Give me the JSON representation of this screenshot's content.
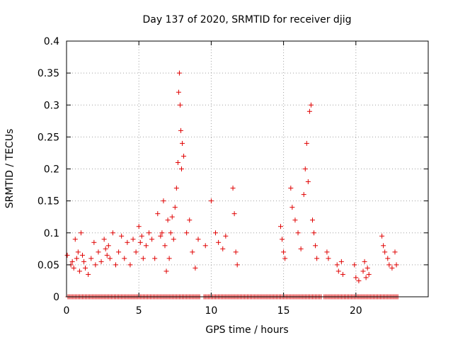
{
  "chart_data": {
    "type": "scatter",
    "title": "Day 137 of 2020, SRMTID for receiver djig",
    "xlabel": "GPS time / hours",
    "ylabel": "SRMTID / TECUs",
    "xlim": [
      0,
      25
    ],
    "ylim": [
      0,
      0.4
    ],
    "xticks": [
      0,
      5,
      10,
      15,
      20
    ],
    "xtick_labels": [
      "0",
      "5",
      "10",
      "15",
      "20"
    ],
    "yticks": [
      0,
      0.05,
      0.1,
      0.15,
      0.2,
      0.25,
      0.3,
      0.35,
      0.4
    ],
    "ytick_labels": [
      "0",
      "0.05",
      "0.1",
      "0.15",
      "0.2",
      "0.25",
      "0.3",
      "0.35",
      "0.4"
    ],
    "grid": true,
    "marker": "+",
    "color": "#e00000",
    "series": [
      {
        "name": "SRMTID",
        "x": [
          0.05,
          0.3,
          0.4,
          0.5,
          0.6,
          0.7,
          0.8,
          0.9,
          1.0,
          1.1,
          1.2,
          1.3,
          1.5,
          1.7,
          1.9,
          2.0,
          2.2,
          2.4,
          2.6,
          2.7,
          2.8,
          2.9,
          3.0,
          3.2,
          3.4,
          3.6,
          3.8,
          4.0,
          4.2,
          4.4,
          4.6,
          4.8,
          5.0,
          5.1,
          5.2,
          5.3,
          5.5,
          5.7,
          5.9,
          6.1,
          6.3,
          6.5,
          6.6,
          6.7,
          6.8,
          6.9,
          7.0,
          7.1,
          7.2,
          7.3,
          7.4,
          7.5,
          7.6,
          7.7,
          7.75,
          7.8,
          7.85,
          7.9,
          7.95,
          8.0,
          8.1,
          8.3,
          8.5,
          8.7,
          8.9,
          9.1,
          9.6,
          10.0,
          10.3,
          10.5,
          10.8,
          11.0,
          11.5,
          11.6,
          11.7,
          11.8,
          14.8,
          14.9,
          15.0,
          15.1,
          15.5,
          15.6,
          15.8,
          16.0,
          16.2,
          16.4,
          16.5,
          16.6,
          16.7,
          16.8,
          16.9,
          17.0,
          17.1,
          17.2,
          17.3,
          18.0,
          18.1,
          18.7,
          18.8,
          19.0,
          19.1,
          19.9,
          20.0,
          20.2,
          20.5,
          20.6,
          20.7,
          20.8,
          20.9,
          21.8,
          21.9,
          22.0,
          22.2,
          22.3,
          22.5,
          22.7,
          22.8
        ],
        "y": [
          0.065,
          0.05,
          0.055,
          0.045,
          0.09,
          0.06,
          0.07,
          0.04,
          0.1,
          0.065,
          0.055,
          0.045,
          0.035,
          0.06,
          0.085,
          0.05,
          0.07,
          0.055,
          0.09,
          0.075,
          0.065,
          0.08,
          0.06,
          0.1,
          0.05,
          0.07,
          0.095,
          0.06,
          0.085,
          0.05,
          0.09,
          0.07,
          0.11,
          0.085,
          0.095,
          0.06,
          0.08,
          0.1,
          0.09,
          0.06,
          0.13,
          0.095,
          0.1,
          0.15,
          0.08,
          0.04,
          0.12,
          0.06,
          0.1,
          0.125,
          0.09,
          0.14,
          0.17,
          0.21,
          0.32,
          0.35,
          0.3,
          0.26,
          0.2,
          0.24,
          0.22,
          0.1,
          0.12,
          0.07,
          0.045,
          0.09,
          0.08,
          0.15,
          0.1,
          0.085,
          0.075,
          0.095,
          0.17,
          0.13,
          0.07,
          0.05,
          0.11,
          0.09,
          0.07,
          0.06,
          0.17,
          0.14,
          0.12,
          0.1,
          0.075,
          0.16,
          0.2,
          0.24,
          0.18,
          0.29,
          0.3,
          0.12,
          0.1,
          0.08,
          0.06,
          0.07,
          0.06,
          0.05,
          0.04,
          0.055,
          0.035,
          0.05,
          0.03,
          0.025,
          0.04,
          0.055,
          0.03,
          0.045,
          0.035,
          0.095,
          0.08,
          0.07,
          0.06,
          0.05,
          0.045,
          0.07,
          0.05
        ],
        "zero_runs": [
          [
            0.1,
            9.2
          ],
          [
            9.5,
            12.2
          ],
          [
            12.3,
            17.6
          ],
          [
            17.8,
            22.9
          ]
        ]
      }
    ]
  }
}
